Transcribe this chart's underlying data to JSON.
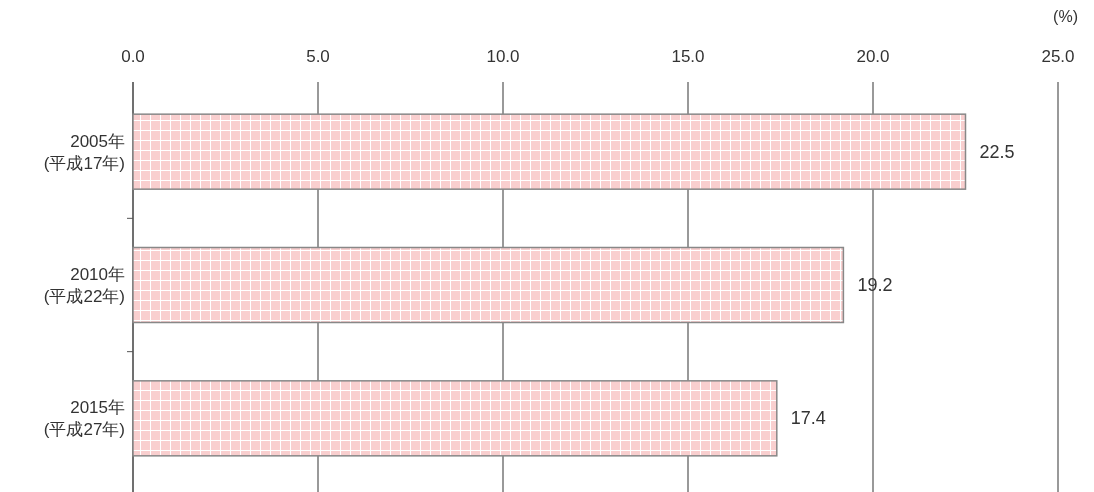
{
  "chart_data": {
    "type": "bar",
    "orientation": "horizontal",
    "xlabel": "(%)",
    "categories": [
      "2005年\n(平成17年)",
      "2010年\n(平成22年)",
      "2015年\n(平成27年)"
    ],
    "values": [
      22.5,
      19.2,
      17.4
    ],
    "color": "#f9cfcf",
    "xlim": [
      0,
      25
    ],
    "xticks": [
      {
        "value": 0,
        "label": "0.0"
      },
      {
        "value": 5,
        "label": "5.0"
      },
      {
        "value": 10,
        "label": "10.0"
      },
      {
        "value": 15,
        "label": "15.0"
      },
      {
        "value": 20,
        "label": "20.0"
      },
      {
        "value": 25,
        "label": "25.0"
      }
    ],
    "grid": "x",
    "data_labels": true
  }
}
